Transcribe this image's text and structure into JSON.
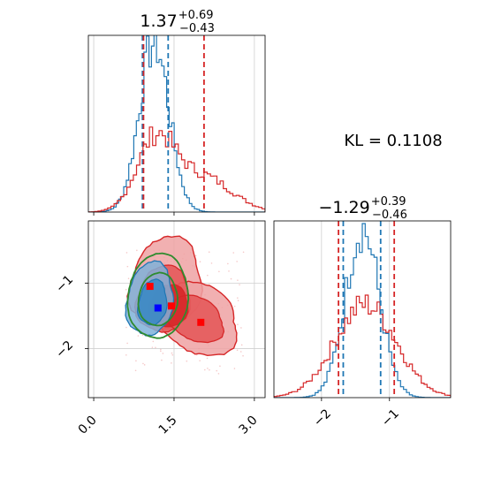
{
  "chart_data": [
    {
      "panel": "x-marginal",
      "type": "histogram",
      "title": {
        "main": "1.37",
        "sup": "+0.69",
        "sub": "−0.43"
      },
      "xlim": [
        -0.1,
        3.2
      ],
      "series": [
        {
          "color": "#1f77b4",
          "center": 1.13,
          "sd": 0.28,
          "amplitude": 1.0
        },
        {
          "color": "#d62728",
          "centers": [
            1.15,
            2.0
          ],
          "sds": [
            0.35,
            0.55
          ],
          "weights": [
            0.6,
            0.4
          ],
          "amplitude": 0.4
        }
      ],
      "quantile_lines": [
        {
          "color": "#1f77b4",
          "x": [
            0.91,
            1.39
          ]
        },
        {
          "color": "#d62728",
          "x": [
            0.93,
            2.06
          ]
        }
      ],
      "grid": true
    },
    {
      "panel": "y-marginal",
      "type": "histogram",
      "title": {
        "main": "−1.29",
        "sup": "+0.39",
        "sub": "−0.46"
      },
      "xlim": [
        -2.7,
        -0.1
      ],
      "xticks": [
        -2,
        -1
      ],
      "xtick_labels": [
        "−2",
        "−1"
      ],
      "series": [
        {
          "color": "#1f77b4",
          "center": -1.4,
          "sd": 0.25,
          "amplitude": 1.0
        },
        {
          "color": "#d62728",
          "center": -1.35,
          "sd": 0.45,
          "amplitude": 0.55
        }
      ],
      "quantile_lines": [
        {
          "color": "#1f77b4",
          "x": [
            -1.68,
            -1.13
          ]
        },
        {
          "color": "#d62728",
          "x": [
            -1.75,
            -0.93
          ]
        }
      ],
      "grid": true
    },
    {
      "panel": "joint",
      "type": "contour",
      "xlim": [
        -0.1,
        3.2
      ],
      "ylim": [
        -2.75,
        -0.05
      ],
      "xticks": [
        0.0,
        1.5,
        3.0
      ],
      "xtick_labels": [
        "0.0",
        "1.5",
        "3.0"
      ],
      "yticks": [
        -2,
        -1
      ],
      "ytick_labels": [
        "−2",
        "−1"
      ],
      "contours": [
        {
          "color": "#d62728",
          "level": "outer",
          "fill": "#efa2a3"
        },
        {
          "color": "#d62728",
          "level": "middle",
          "fill": "#e45a5b"
        },
        {
          "color": "#d62728",
          "level": "inner",
          "fill": "#d62728"
        },
        {
          "color": "#1f77b4",
          "level": "outer",
          "fill": "#7fb2d9"
        },
        {
          "color": "#1f77b4",
          "level": "inner",
          "fill": "#3b89c4"
        },
        {
          "color": "#2e8b2e",
          "level": "outer",
          "fill": "none"
        },
        {
          "color": "#2e8b2e",
          "level": "inner",
          "fill": "none"
        }
      ],
      "markers": [
        {
          "color": "#0000ff",
          "x": 1.2,
          "y": -1.38
        },
        {
          "color": "#ff0000",
          "x": 1.45,
          "y": -1.35
        },
        {
          "color": "#ff0000",
          "x": 2.0,
          "y": -1.6
        },
        {
          "color": "#ff0000",
          "x": 1.05,
          "y": -1.05
        }
      ],
      "grid": true
    }
  ],
  "annotation": {
    "kl_text": "KL = 0.1108"
  }
}
